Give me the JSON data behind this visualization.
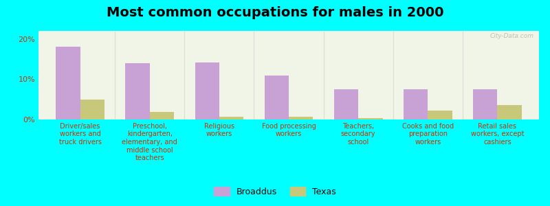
{
  "title": "Most common occupations for males in 2000",
  "categories": [
    "Driver/sales\nworkers and\ntruck drivers",
    "Preschool,\nkindergarten,\nelementary, and\nmiddle school\nteachers",
    "Religious\nworkers",
    "Food processing\nworkers",
    "Teachers,\nsecondary\nschool",
    "Cooks and food\npreparation\nworkers",
    "Retail sales\nworkers, except\ncashiers"
  ],
  "broaddus_values": [
    18.0,
    14.0,
    14.2,
    11.0,
    7.5,
    7.5,
    7.5
  ],
  "texas_values": [
    5.0,
    1.8,
    0.7,
    0.6,
    0.4,
    2.2,
    3.5
  ],
  "broaddus_color": "#c8a2d4",
  "texas_color": "#c8c87a",
  "background_color": "#00ffff",
  "plot_bg_color": "#f0f5e8",
  "ylim": [
    0,
    22
  ],
  "yticks": [
    0,
    10,
    20
  ],
  "ytick_labels": [
    "0%",
    "10%",
    "20%"
  ],
  "bar_width": 0.35,
  "title_fontsize": 14,
  "legend_labels": [
    "Broaddus",
    "Texas"
  ],
  "watermark": "City-Data.com",
  "tick_label_fontsize": 7,
  "tick_color": "#cc3300"
}
